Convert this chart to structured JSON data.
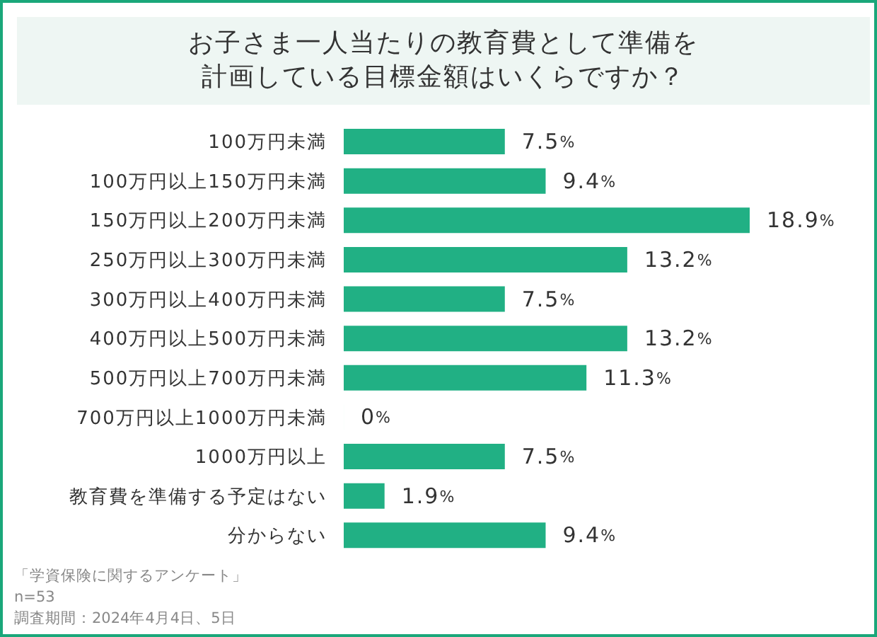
{
  "chart_data": {
    "type": "bar",
    "orientation": "horizontal",
    "title": "お子さま一人当たりの教育費として準備を計画している目標金額はいくらですか？",
    "categories": [
      "100万円未満",
      "100万円以上150万円未満",
      "150万円以上200万円未満",
      "250万円以上300万円未満",
      "300万円以上400万円未満",
      "400万円以上500万円未満",
      "500万円以上700万円未満",
      "700万円以上1000万円未満",
      "1000万円以上",
      "教育費を準備する予定はない",
      "分からない"
    ],
    "values": [
      7.5,
      9.4,
      18.9,
      13.2,
      7.5,
      13.2,
      11.3,
      0,
      7.5,
      1.9,
      9.4
    ],
    "value_labels": [
      "7.5%",
      "9.4%",
      "18.9%",
      "13.2%",
      "7.5%",
      "13.2%",
      "11.3%",
      "0%",
      "7.5%",
      "1.9%",
      "9.4%"
    ],
    "color": "#21b084",
    "tick_labels": "y",
    "annotations": [
      "「学資保険に関するアンケート」",
      "n=53",
      "調査期間：2024年4月4日、5日"
    ]
  }
}
